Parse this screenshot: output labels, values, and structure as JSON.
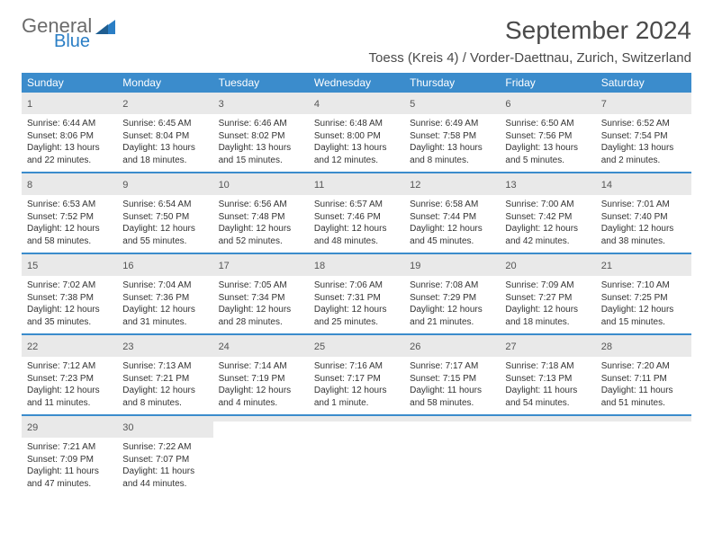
{
  "logo": {
    "general": "General",
    "blue": "Blue"
  },
  "title": "September 2024",
  "location": "Toess (Kreis 4) / Vorder-Daettnau, Zurich, Switzerland",
  "colors": {
    "header_bg": "#3b8ccc",
    "header_text": "#ffffff",
    "daynum_bg": "#e9e9e9",
    "week_border": "#3b8ccc",
    "body_text": "#333333",
    "logo_gray": "#6b6b6b",
    "logo_blue": "#2a7ec5"
  },
  "day_names": [
    "Sunday",
    "Monday",
    "Tuesday",
    "Wednesday",
    "Thursday",
    "Friday",
    "Saturday"
  ],
  "weeks": [
    [
      {
        "n": "1",
        "sr": "Sunrise: 6:44 AM",
        "ss": "Sunset: 8:06 PM",
        "d1": "Daylight: 13 hours",
        "d2": "and 22 minutes."
      },
      {
        "n": "2",
        "sr": "Sunrise: 6:45 AM",
        "ss": "Sunset: 8:04 PM",
        "d1": "Daylight: 13 hours",
        "d2": "and 18 minutes."
      },
      {
        "n": "3",
        "sr": "Sunrise: 6:46 AM",
        "ss": "Sunset: 8:02 PM",
        "d1": "Daylight: 13 hours",
        "d2": "and 15 minutes."
      },
      {
        "n": "4",
        "sr": "Sunrise: 6:48 AM",
        "ss": "Sunset: 8:00 PM",
        "d1": "Daylight: 13 hours",
        "d2": "and 12 minutes."
      },
      {
        "n": "5",
        "sr": "Sunrise: 6:49 AM",
        "ss": "Sunset: 7:58 PM",
        "d1": "Daylight: 13 hours",
        "d2": "and 8 minutes."
      },
      {
        "n": "6",
        "sr": "Sunrise: 6:50 AM",
        "ss": "Sunset: 7:56 PM",
        "d1": "Daylight: 13 hours",
        "d2": "and 5 minutes."
      },
      {
        "n": "7",
        "sr": "Sunrise: 6:52 AM",
        "ss": "Sunset: 7:54 PM",
        "d1": "Daylight: 13 hours",
        "d2": "and 2 minutes."
      }
    ],
    [
      {
        "n": "8",
        "sr": "Sunrise: 6:53 AM",
        "ss": "Sunset: 7:52 PM",
        "d1": "Daylight: 12 hours",
        "d2": "and 58 minutes."
      },
      {
        "n": "9",
        "sr": "Sunrise: 6:54 AM",
        "ss": "Sunset: 7:50 PM",
        "d1": "Daylight: 12 hours",
        "d2": "and 55 minutes."
      },
      {
        "n": "10",
        "sr": "Sunrise: 6:56 AM",
        "ss": "Sunset: 7:48 PM",
        "d1": "Daylight: 12 hours",
        "d2": "and 52 minutes."
      },
      {
        "n": "11",
        "sr": "Sunrise: 6:57 AM",
        "ss": "Sunset: 7:46 PM",
        "d1": "Daylight: 12 hours",
        "d2": "and 48 minutes."
      },
      {
        "n": "12",
        "sr": "Sunrise: 6:58 AM",
        "ss": "Sunset: 7:44 PM",
        "d1": "Daylight: 12 hours",
        "d2": "and 45 minutes."
      },
      {
        "n": "13",
        "sr": "Sunrise: 7:00 AM",
        "ss": "Sunset: 7:42 PM",
        "d1": "Daylight: 12 hours",
        "d2": "and 42 minutes."
      },
      {
        "n": "14",
        "sr": "Sunrise: 7:01 AM",
        "ss": "Sunset: 7:40 PM",
        "d1": "Daylight: 12 hours",
        "d2": "and 38 minutes."
      }
    ],
    [
      {
        "n": "15",
        "sr": "Sunrise: 7:02 AM",
        "ss": "Sunset: 7:38 PM",
        "d1": "Daylight: 12 hours",
        "d2": "and 35 minutes."
      },
      {
        "n": "16",
        "sr": "Sunrise: 7:04 AM",
        "ss": "Sunset: 7:36 PM",
        "d1": "Daylight: 12 hours",
        "d2": "and 31 minutes."
      },
      {
        "n": "17",
        "sr": "Sunrise: 7:05 AM",
        "ss": "Sunset: 7:34 PM",
        "d1": "Daylight: 12 hours",
        "d2": "and 28 minutes."
      },
      {
        "n": "18",
        "sr": "Sunrise: 7:06 AM",
        "ss": "Sunset: 7:31 PM",
        "d1": "Daylight: 12 hours",
        "d2": "and 25 minutes."
      },
      {
        "n": "19",
        "sr": "Sunrise: 7:08 AM",
        "ss": "Sunset: 7:29 PM",
        "d1": "Daylight: 12 hours",
        "d2": "and 21 minutes."
      },
      {
        "n": "20",
        "sr": "Sunrise: 7:09 AM",
        "ss": "Sunset: 7:27 PM",
        "d1": "Daylight: 12 hours",
        "d2": "and 18 minutes."
      },
      {
        "n": "21",
        "sr": "Sunrise: 7:10 AM",
        "ss": "Sunset: 7:25 PM",
        "d1": "Daylight: 12 hours",
        "d2": "and 15 minutes."
      }
    ],
    [
      {
        "n": "22",
        "sr": "Sunrise: 7:12 AM",
        "ss": "Sunset: 7:23 PM",
        "d1": "Daylight: 12 hours",
        "d2": "and 11 minutes."
      },
      {
        "n": "23",
        "sr": "Sunrise: 7:13 AM",
        "ss": "Sunset: 7:21 PM",
        "d1": "Daylight: 12 hours",
        "d2": "and 8 minutes."
      },
      {
        "n": "24",
        "sr": "Sunrise: 7:14 AM",
        "ss": "Sunset: 7:19 PM",
        "d1": "Daylight: 12 hours",
        "d2": "and 4 minutes."
      },
      {
        "n": "25",
        "sr": "Sunrise: 7:16 AM",
        "ss": "Sunset: 7:17 PM",
        "d1": "Daylight: 12 hours",
        "d2": "and 1 minute."
      },
      {
        "n": "26",
        "sr": "Sunrise: 7:17 AM",
        "ss": "Sunset: 7:15 PM",
        "d1": "Daylight: 11 hours",
        "d2": "and 58 minutes."
      },
      {
        "n": "27",
        "sr": "Sunrise: 7:18 AM",
        "ss": "Sunset: 7:13 PM",
        "d1": "Daylight: 11 hours",
        "d2": "and 54 minutes."
      },
      {
        "n": "28",
        "sr": "Sunrise: 7:20 AM",
        "ss": "Sunset: 7:11 PM",
        "d1": "Daylight: 11 hours",
        "d2": "and 51 minutes."
      }
    ],
    [
      {
        "n": "29",
        "sr": "Sunrise: 7:21 AM",
        "ss": "Sunset: 7:09 PM",
        "d1": "Daylight: 11 hours",
        "d2": "and 47 minutes."
      },
      {
        "n": "30",
        "sr": "Sunrise: 7:22 AM",
        "ss": "Sunset: 7:07 PM",
        "d1": "Daylight: 11 hours",
        "d2": "and 44 minutes."
      },
      {
        "empty": true
      },
      {
        "empty": true
      },
      {
        "empty": true
      },
      {
        "empty": true
      },
      {
        "empty": true
      }
    ]
  ]
}
